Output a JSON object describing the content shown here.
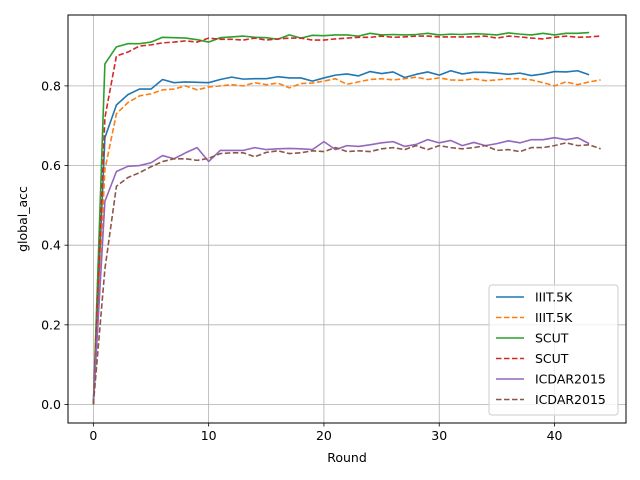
{
  "chart_data": {
    "type": "line",
    "title": "",
    "xlabel": "Round",
    "ylabel": "global_acc",
    "xlim": [
      -2.2,
      46.2
    ],
    "ylim": [
      -0.0465,
      0.978
    ],
    "xticks": [
      0,
      10,
      20,
      30,
      40
    ],
    "xtick_labels": [
      "0",
      "10",
      "20",
      "30",
      "40"
    ],
    "yticks": [
      0.0,
      0.2,
      0.4,
      0.6,
      0.8
    ],
    "ytick_labels": [
      "0.0",
      "0.2",
      "0.4",
      "0.6",
      "0.8"
    ],
    "grid": true,
    "legend_position": "lower right",
    "series": [
      {
        "name": "IIIT.5K",
        "color": "#1f77b4",
        "dash": "solid",
        "x": [
          0,
          1,
          2,
          3,
          4,
          5,
          6,
          7,
          8,
          9,
          10,
          11,
          12,
          13,
          14,
          15,
          16,
          17,
          18,
          19,
          20,
          21,
          22,
          23,
          24,
          25,
          26,
          27,
          28,
          29,
          30,
          31,
          32,
          33,
          34,
          35,
          36,
          37,
          38,
          39,
          40,
          41,
          42,
          43
        ],
        "y": [
          0.0,
          0.67,
          0.752,
          0.778,
          0.792,
          0.792,
          0.816,
          0.808,
          0.81,
          0.809,
          0.808,
          0.816,
          0.822,
          0.817,
          0.818,
          0.818,
          0.823,
          0.82,
          0.82,
          0.812,
          0.82,
          0.827,
          0.83,
          0.825,
          0.836,
          0.831,
          0.835,
          0.821,
          0.829,
          0.835,
          0.827,
          0.838,
          0.83,
          0.834,
          0.834,
          0.832,
          0.829,
          0.832,
          0.826,
          0.83,
          0.836,
          0.835,
          0.838,
          0.828
        ]
      },
      {
        "name": "IIIT.5K",
        "color": "#ff7f0e",
        "dash": "dashed",
        "x": [
          0,
          1,
          2,
          3,
          4,
          5,
          6,
          7,
          8,
          9,
          10,
          11,
          12,
          13,
          14,
          15,
          16,
          17,
          18,
          19,
          20,
          21,
          22,
          23,
          24,
          25,
          26,
          27,
          28,
          29,
          30,
          31,
          32,
          33,
          34,
          35,
          36,
          37,
          38,
          39,
          40,
          41,
          42,
          43,
          44
        ],
        "y": [
          0.0,
          0.59,
          0.73,
          0.758,
          0.775,
          0.78,
          0.79,
          0.792,
          0.8,
          0.79,
          0.797,
          0.8,
          0.803,
          0.8,
          0.808,
          0.803,
          0.807,
          0.795,
          0.806,
          0.807,
          0.812,
          0.818,
          0.804,
          0.81,
          0.816,
          0.818,
          0.815,
          0.818,
          0.822,
          0.816,
          0.82,
          0.815,
          0.814,
          0.818,
          0.813,
          0.815,
          0.818,
          0.818,
          0.815,
          0.808,
          0.8,
          0.81,
          0.803,
          0.81,
          0.815
        ]
      },
      {
        "name": "SCUT",
        "color": "#2ca02c",
        "dash": "solid",
        "x": [
          0,
          1,
          2,
          3,
          4,
          5,
          6,
          7,
          8,
          9,
          10,
          11,
          12,
          13,
          14,
          15,
          16,
          17,
          18,
          19,
          20,
          21,
          22,
          23,
          24,
          25,
          26,
          27,
          28,
          29,
          30,
          31,
          32,
          33,
          34,
          35,
          36,
          37,
          38,
          39,
          40,
          41,
          42,
          43
        ],
        "y": [
          0.0,
          0.855,
          0.898,
          0.906,
          0.906,
          0.91,
          0.922,
          0.921,
          0.92,
          0.916,
          0.91,
          0.921,
          0.923,
          0.925,
          0.922,
          0.921,
          0.917,
          0.928,
          0.92,
          0.927,
          0.926,
          0.928,
          0.928,
          0.925,
          0.932,
          0.928,
          0.929,
          0.928,
          0.929,
          0.932,
          0.928,
          0.93,
          0.929,
          0.931,
          0.93,
          0.928,
          0.933,
          0.93,
          0.928,
          0.932,
          0.928,
          0.932,
          0.932,
          0.934
        ]
      },
      {
        "name": "SCUT",
        "color": "#d62728",
        "dash": "dashed",
        "x": [
          0,
          1,
          2,
          3,
          4,
          5,
          6,
          7,
          8,
          9,
          10,
          11,
          12,
          13,
          14,
          15,
          16,
          17,
          18,
          19,
          20,
          21,
          22,
          23,
          24,
          25,
          26,
          27,
          28,
          29,
          30,
          31,
          32,
          33,
          34,
          35,
          36,
          37,
          38,
          39,
          40,
          41,
          42,
          43,
          44
        ],
        "y": [
          0.0,
          0.72,
          0.875,
          0.885,
          0.9,
          0.903,
          0.908,
          0.91,
          0.913,
          0.91,
          0.92,
          0.917,
          0.917,
          0.915,
          0.92,
          0.915,
          0.918,
          0.92,
          0.92,
          0.915,
          0.915,
          0.918,
          0.92,
          0.922,
          0.922,
          0.925,
          0.922,
          0.923,
          0.925,
          0.925,
          0.923,
          0.923,
          0.923,
          0.923,
          0.925,
          0.92,
          0.925,
          0.923,
          0.92,
          0.918,
          0.922,
          0.925,
          0.922,
          0.923,
          0.925
        ]
      },
      {
        "name": "ICDAR2015",
        "color": "#9467bd",
        "dash": "solid",
        "x": [
          0,
          1,
          2,
          3,
          4,
          5,
          6,
          7,
          8,
          9,
          10,
          11,
          12,
          13,
          14,
          15,
          16,
          17,
          18,
          19,
          20,
          21,
          22,
          23,
          24,
          25,
          26,
          27,
          28,
          29,
          30,
          31,
          32,
          33,
          34,
          35,
          36,
          37,
          38,
          39,
          40,
          41,
          42,
          43
        ],
        "y": [
          0.0,
          0.51,
          0.585,
          0.598,
          0.6,
          0.607,
          0.625,
          0.617,
          0.632,
          0.645,
          0.61,
          0.638,
          0.638,
          0.638,
          0.645,
          0.64,
          0.642,
          0.643,
          0.642,
          0.64,
          0.66,
          0.64,
          0.65,
          0.648,
          0.652,
          0.657,
          0.66,
          0.648,
          0.653,
          0.665,
          0.657,
          0.663,
          0.65,
          0.658,
          0.65,
          0.655,
          0.662,
          0.657,
          0.665,
          0.665,
          0.67,
          0.665,
          0.67,
          0.655
        ]
      },
      {
        "name": "ICDAR2015",
        "color": "#8c564b",
        "dash": "dashed",
        "x": [
          0,
          1,
          2,
          3,
          4,
          5,
          6,
          7,
          8,
          9,
          10,
          11,
          12,
          13,
          14,
          15,
          16,
          17,
          18,
          19,
          20,
          21,
          22,
          23,
          24,
          25,
          26,
          27,
          28,
          29,
          30,
          31,
          32,
          33,
          34,
          35,
          36,
          37,
          38,
          39,
          40,
          41,
          42,
          43,
          44
        ],
        "y": [
          0.0,
          0.34,
          0.548,
          0.57,
          0.582,
          0.597,
          0.61,
          0.617,
          0.617,
          0.613,
          0.618,
          0.63,
          0.632,
          0.632,
          0.622,
          0.633,
          0.637,
          0.63,
          0.632,
          0.637,
          0.635,
          0.645,
          0.635,
          0.637,
          0.635,
          0.642,
          0.645,
          0.64,
          0.65,
          0.64,
          0.65,
          0.645,
          0.642,
          0.645,
          0.65,
          0.638,
          0.64,
          0.635,
          0.645,
          0.645,
          0.65,
          0.657,
          0.65,
          0.652,
          0.642
        ]
      }
    ]
  }
}
